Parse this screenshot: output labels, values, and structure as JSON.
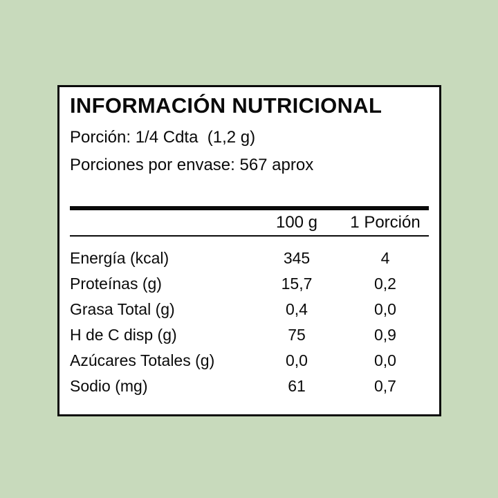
{
  "background_color": "#c8dabc",
  "panel": {
    "title": "INFORMACIÓN NUTRICIONAL",
    "serving_size_line": "Porción: 1/4 Cdta  (1,2 g)",
    "servings_per_container_line": "Porciones por envase: 567 aprox",
    "table": {
      "header": {
        "per_100g": "100 g",
        "per_portion": "1 Porción"
      },
      "rows": [
        {
          "label": "Energía (kcal)",
          "per_100g": "345",
          "per_portion": "4"
        },
        {
          "label": "Proteínas (g)",
          "per_100g": "15,7",
          "per_portion": "0,2"
        },
        {
          "label": "Grasa Total (g)",
          "per_100g": "0,4",
          "per_portion": "0,0"
        },
        {
          "label": "H de C disp (g)",
          "per_100g": "75",
          "per_portion": "0,9"
        },
        {
          "label": "Azúcares Totales (g)",
          "per_100g": "0,0",
          "per_portion": "0,0"
        },
        {
          "label": "Sodio (mg)",
          "per_100g": "61",
          "per_portion": "0,7"
        }
      ]
    }
  }
}
